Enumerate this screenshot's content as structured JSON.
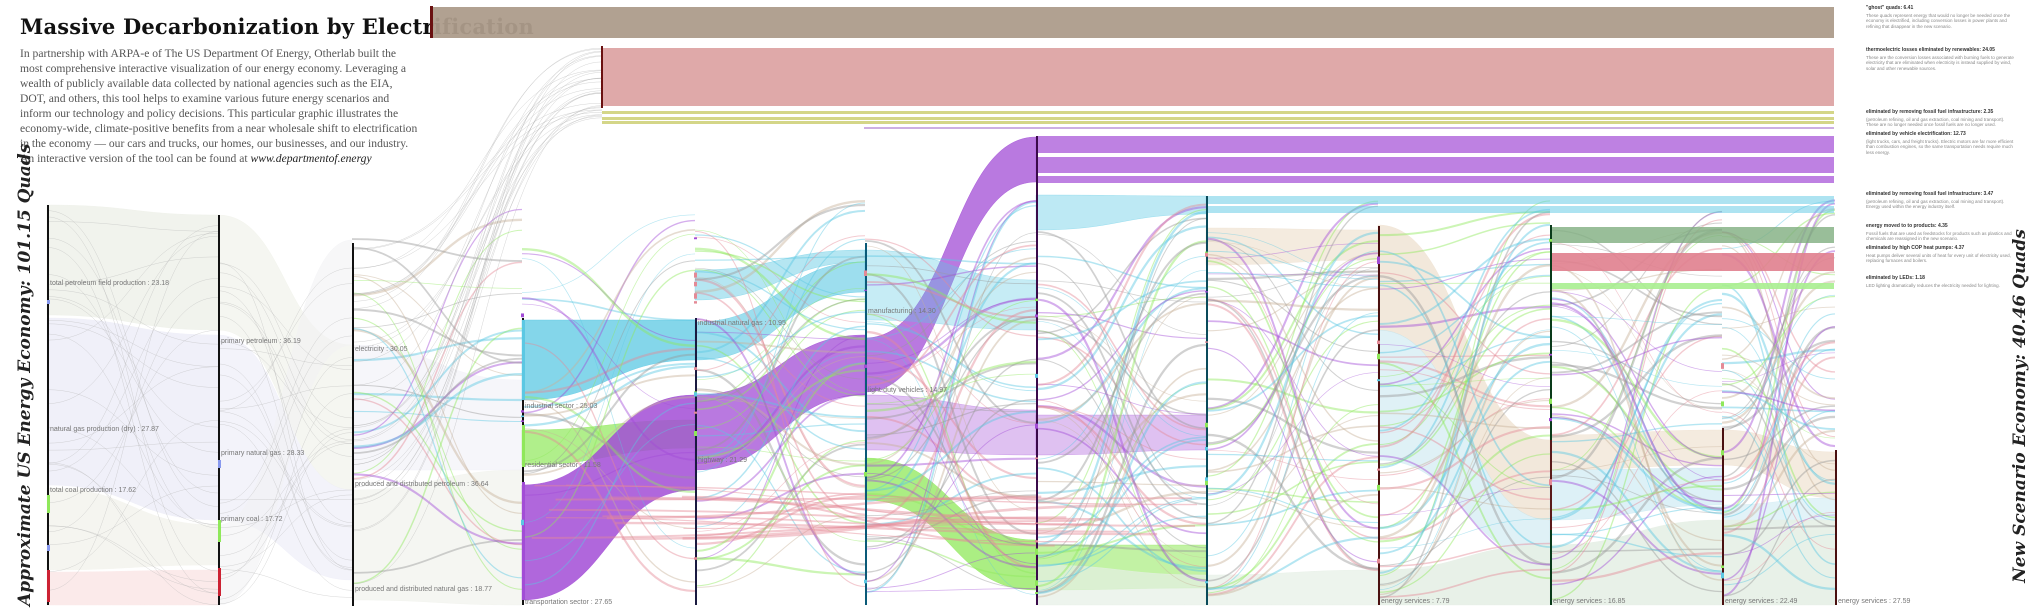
{
  "header": {
    "title": "Massive Decarbonization by Electrification",
    "intro": "In partnership with ARPA-e of The US Department Of Energy, Otherlab built the most comprehensive interactive visualization of our energy economy. Leveraging a wealth of publicly available data collected by national agencies such as the EIA, DOT, and others, this tool helps to examine various future energy scenarios and inform our technology and policy decisions. This particular graphic illustrates the economy-wide, climate-positive benefits from a near wholesale shift to electrification in the economy — our cars and trucks, our homes, our businesses, and our industry.  An interactive version of the tool can be found at",
    "url": "www.departmentof.energy"
  },
  "side_labels": {
    "left": "Approximate US Energy Economy:  101.15 Quads",
    "right": "New Scenario Economy:  40.46 Quads"
  },
  "notes": [
    {
      "title": "\"ghost\" quads: 6.41",
      "body": "These quads represent energy that would no longer be needed once the economy is electrified, including conversion losses in power plants and refining that disappear in the new scenario."
    },
    {
      "title": "thermoelectric losses eliminated by renewables: 24.05",
      "body": "These are the conversion losses associated with burning fuels to generate electricity that are eliminated when electricity is instead supplied by wind, solar and other renewable sources."
    },
    {
      "title": "eliminated by removing fossil fuel infrastructure: 2.35",
      "body": "(petroleum refining, oil and gas extraction, coal mining and transport). These are no longer needed once fossil fuels are no longer used."
    },
    {
      "title": "eliminated by vehicle electrification: 12.73",
      "body": "(light trucks, cars, and freight trucks). Electric motors are far more efficient than combustion engines, so the same transportation needs require much less energy."
    },
    {
      "title": "eliminated by removing fossil fuel infrastructure: 3.47",
      "body": "(petroleum refining, oil and gas extraction, coal mining and transport). Energy used within the energy industry itself."
    },
    {
      "title": "energy moved to to products: 4.35",
      "body": "Fossil fuels that are used as feedstocks for products such as plastics and chemicals are reassigned in the new scenario."
    },
    {
      "title": "eliminated by high COP heat pumps: 4.37",
      "body": "Heat pumps deliver several units of heat for every unit of electricity used, replacing furnaces and boilers."
    },
    {
      "title": "eliminated by LEDs: 1.18",
      "body": "LED lighting dramatically reduces the electricity needed for lighting."
    }
  ],
  "chart_data": {
    "type": "sankey",
    "stage_labels": {
      "sources": [
        "total petroleum field production : 23.18",
        "natural gas production (dry) : 27.87",
        "total coal production : 17.62"
      ],
      "primary": [
        "primary petroleum : 36.19",
        "primary natural gas : 28.33",
        "primary coal : 17.72"
      ],
      "carriers": [
        "electricity : 30.05",
        "produced and distributed petroleum : 36.64",
        "produced and distributed natural gas : 18.77"
      ],
      "sectors": [
        "industrial sector : 25.03",
        "residential sector : 11.58",
        "transportation sector : 27.65"
      ],
      "subsectors": [
        "industrial natural gas : 10.95",
        "highway : 21.29"
      ],
      "uses": [
        "manufacturing : 14.30",
        "light-duty vehicles : 14.97"
      ],
      "services": [
        "energy services : 7.79",
        "energy services : 16.85",
        "energy services : 22.49",
        "energy services : 27.59"
      ]
    },
    "palette": {
      "petroleum": "#eef0e8",
      "gas": "#eeeef8",
      "coal": "#fbe8e8",
      "industrial": "#5bc8e3",
      "residential": "#8fe85a",
      "transportation": "#a24cd6",
      "commercial": "#e48a96",
      "losses": "#ad9c8b",
      "thermo": "#d99a9a",
      "services": "#e6efe6",
      "tan": "#efe2d2"
    }
  }
}
